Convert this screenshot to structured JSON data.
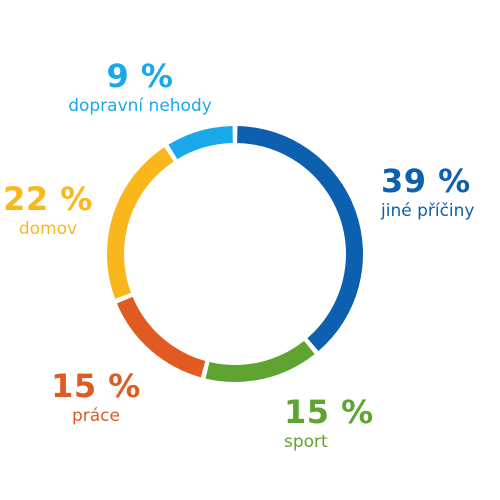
{
  "chart_data": {
    "type": "pie",
    "variant": "donut",
    "categories": [
      "jiné příčiny",
      "sport",
      "práce",
      "domov",
      "dopravní nehody"
    ],
    "values": [
      39,
      15,
      15,
      22,
      9
    ],
    "labels": [
      "39 %",
      "15 %",
      "15 %",
      "22 %",
      "9 %"
    ],
    "colors": [
      "#0d5fb0",
      "#5fa431",
      "#e05a21",
      "#f9b71c",
      "#19a9ea"
    ],
    "start_angle_deg": 0,
    "direction": "clockwise",
    "legend": "none",
    "title": ""
  }
}
